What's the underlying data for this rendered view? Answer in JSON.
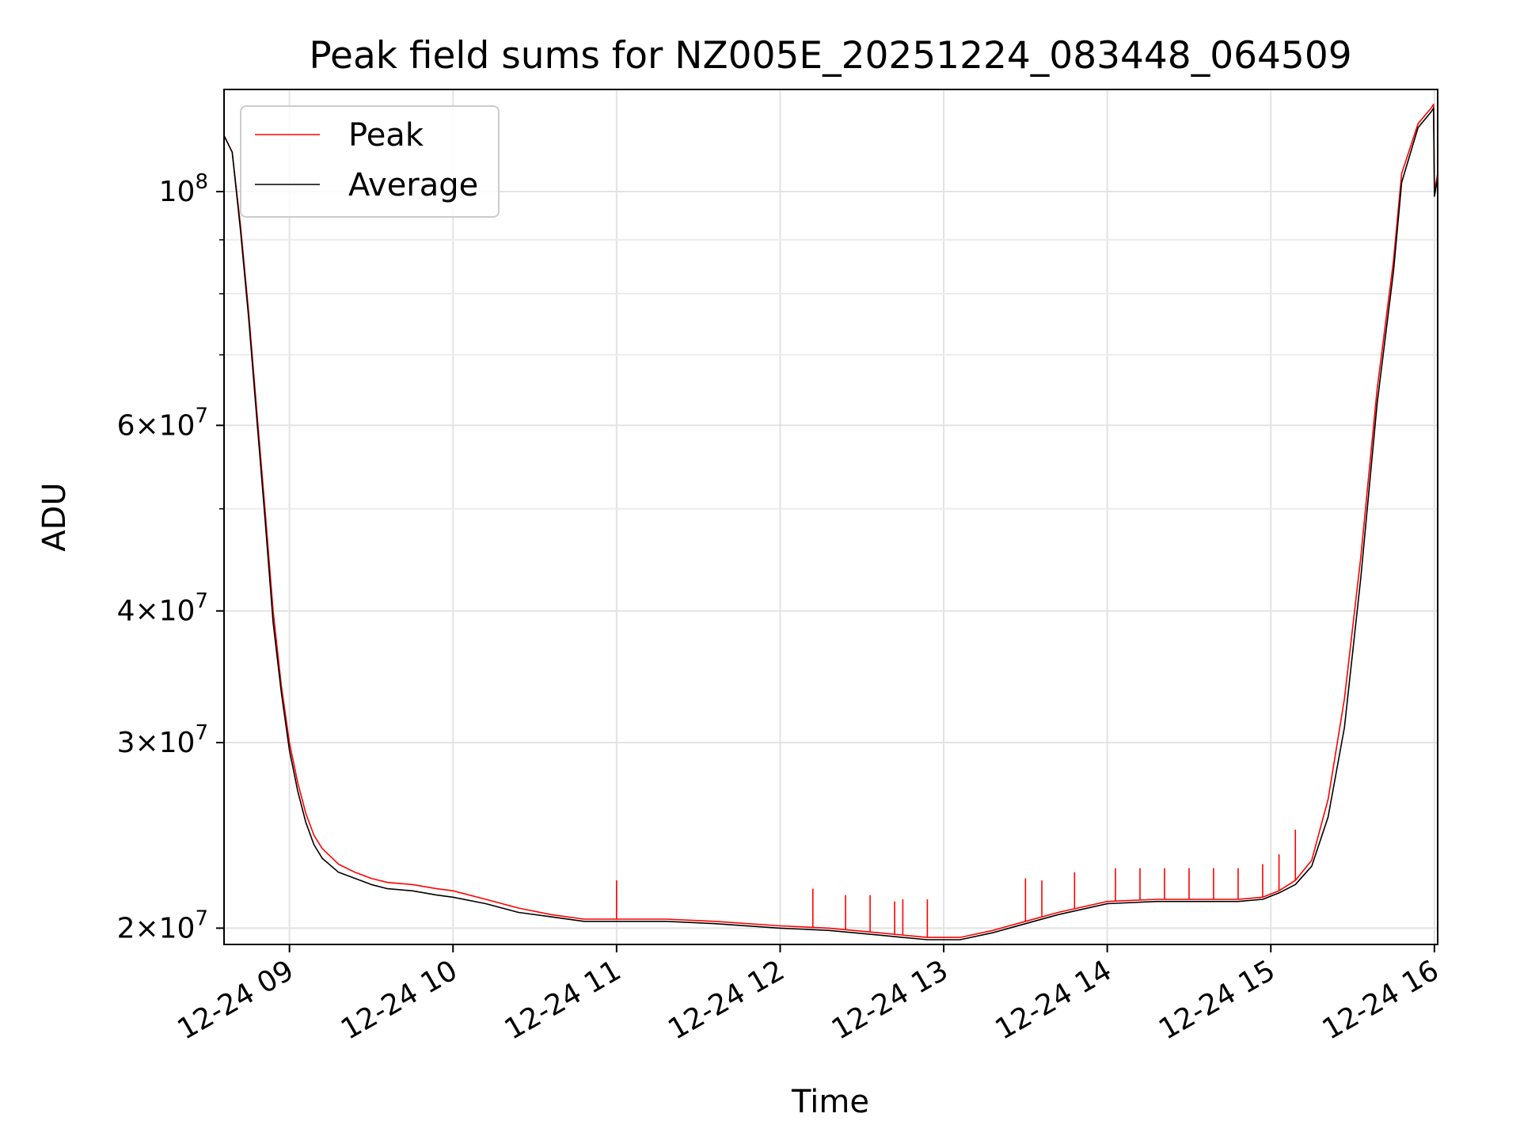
{
  "chart_data": {
    "type": "line",
    "title": "Peak field sums for NZ005E_20251224_083448_064509",
    "xlabel": "Time",
    "ylabel": "ADU",
    "yscale": "log",
    "ylim": [
      19300000,
      125000000
    ],
    "xlim_hours": [
      8.6,
      16.02
    ],
    "grid": true,
    "legend_position": "upper-left",
    "x_ticks": [
      {
        "hour": 9,
        "label": "12-24 09"
      },
      {
        "hour": 10,
        "label": "12-24 10"
      },
      {
        "hour": 11,
        "label": "12-24 11"
      },
      {
        "hour": 12,
        "label": "12-24 12"
      },
      {
        "hour": 13,
        "label": "12-24 13"
      },
      {
        "hour": 14,
        "label": "12-24 14"
      },
      {
        "hour": 15,
        "label": "12-24 15"
      },
      {
        "hour": 16,
        "label": "12-24 16"
      }
    ],
    "y_ticks": [
      {
        "value": 20000000,
        "mantissa": "2",
        "exponent": "7"
      },
      {
        "value": 30000000,
        "mantissa": "3",
        "exponent": "7"
      },
      {
        "value": 40000000,
        "mantissa": "4",
        "exponent": "7"
      },
      {
        "value": 60000000,
        "mantissa": "6",
        "exponent": "7"
      },
      {
        "value": 100000000,
        "mantissa": "",
        "exponent": "8"
      }
    ],
    "y_minor_ticks": [
      50000000,
      70000000,
      80000000,
      90000000
    ],
    "x": [
      8.6,
      8.65,
      8.7,
      8.75,
      8.8,
      8.85,
      8.9,
      8.95,
      9.0,
      9.05,
      9.1,
      9.15,
      9.2,
      9.3,
      9.4,
      9.5,
      9.6,
      9.75,
      9.9,
      10.0,
      10.2,
      10.4,
      10.6,
      10.8,
      11.0,
      11.3,
      11.6,
      12.0,
      12.3,
      12.6,
      12.9,
      13.1,
      13.3,
      13.5,
      13.7,
      14.0,
      14.3,
      14.6,
      14.8,
      14.95,
      15.05,
      15.15,
      15.25,
      15.35,
      15.45,
      15.55,
      15.65,
      15.75,
      15.8,
      15.9,
      15.98,
      15.995,
      16.0,
      16.02
    ],
    "series": [
      {
        "name": "Peak",
        "color": "#ff0000",
        "values": [
          113000000,
          109000000,
          93000000,
          77000000,
          62000000,
          50000000,
          40000000,
          34000000,
          30000000,
          27500000,
          25700000,
          24500000,
          23800000,
          23000000,
          22600000,
          22300000,
          22100000,
          22000000,
          21800000,
          21700000,
          21300000,
          20900000,
          20600000,
          20400000,
          20400000,
          20400000,
          20300000,
          20100000,
          20000000,
          19800000,
          19600000,
          19600000,
          19900000,
          20300000,
          20700000,
          21200000,
          21300000,
          21300000,
          21300000,
          21400000,
          21700000,
          22200000,
          23200000,
          26500000,
          33000000,
          45000000,
          65000000,
          86000000,
          104000000,
          116000000,
          120000000,
          121000000,
          100000000,
          104000000
        ]
      },
      {
        "name": "Average",
        "color": "#000000",
        "values": [
          113000000,
          109000000,
          92000000,
          76000000,
          61000000,
          49000000,
          39000000,
          33500000,
          29500000,
          27000000,
          25200000,
          24000000,
          23300000,
          22600000,
          22300000,
          22000000,
          21800000,
          21700000,
          21500000,
          21400000,
          21100000,
          20700000,
          20500000,
          20300000,
          20300000,
          20300000,
          20200000,
          20000000,
          19900000,
          19700000,
          19500000,
          19500000,
          19800000,
          20200000,
          20600000,
          21100000,
          21200000,
          21200000,
          21200000,
          21300000,
          21600000,
          22000000,
          22900000,
          25500000,
          31000000,
          43000000,
          63000000,
          84000000,
          102000000,
          115000000,
          119000000,
          120000000,
          99000000,
          103000000
        ]
      }
    ],
    "peak_spikes": [
      {
        "x": 11.0,
        "y": 22200000
      },
      {
        "x": 12.2,
        "y": 21800000
      },
      {
        "x": 12.4,
        "y": 21500000
      },
      {
        "x": 12.55,
        "y": 21500000
      },
      {
        "x": 12.7,
        "y": 21200000
      },
      {
        "x": 12.75,
        "y": 21300000
      },
      {
        "x": 12.9,
        "y": 21300000
      },
      {
        "x": 13.5,
        "y": 22300000
      },
      {
        "x": 13.6,
        "y": 22200000
      },
      {
        "x": 13.8,
        "y": 22600000
      },
      {
        "x": 14.05,
        "y": 22800000
      },
      {
        "x": 14.2,
        "y": 22800000
      },
      {
        "x": 14.35,
        "y": 22800000
      },
      {
        "x": 14.5,
        "y": 22800000
      },
      {
        "x": 14.65,
        "y": 22800000
      },
      {
        "x": 14.8,
        "y": 22800000
      },
      {
        "x": 14.95,
        "y": 23000000
      },
      {
        "x": 15.05,
        "y": 23500000
      },
      {
        "x": 15.15,
        "y": 24800000
      }
    ]
  }
}
